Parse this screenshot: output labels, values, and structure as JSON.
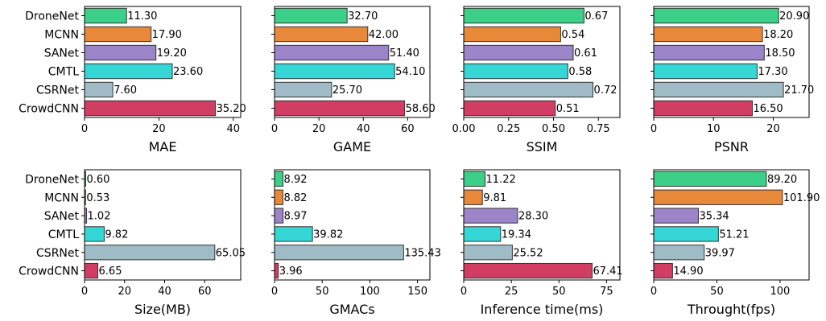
{
  "categories": [
    "DroneNet",
    "MCNN",
    "SANet",
    "CMTL",
    "CSRNet",
    "CrowdCNN"
  ],
  "colors": [
    "#3ccf87",
    "#e8893a",
    "#9b84c8",
    "#35d6d6",
    "#9fbcc6",
    "#d23d64"
  ],
  "chart_data": [
    {
      "type": "bar",
      "orientation": "horizontal",
      "xlabel": "MAE",
      "xlim": [
        0,
        42
      ],
      "xticks": [
        0,
        20,
        40
      ],
      "values": [
        11.3,
        17.9,
        19.2,
        23.6,
        7.6,
        35.2
      ],
      "labels": [
        "11.30",
        "17.90",
        "19.20",
        "23.60",
        "7.60",
        "35.20"
      ]
    },
    {
      "type": "bar",
      "orientation": "horizontal",
      "xlabel": "GAME",
      "xlim": [
        0,
        70
      ],
      "xticks": [
        0,
        20,
        40,
        60
      ],
      "values": [
        32.7,
        42.0,
        51.4,
        54.1,
        25.7,
        58.6
      ],
      "labels": [
        "32.70",
        "42.00",
        "51.40",
        "54.10",
        "25.70",
        "58.60"
      ]
    },
    {
      "type": "bar",
      "orientation": "horizontal",
      "xlabel": "SSIM",
      "xlim": [
        0,
        0.87
      ],
      "xticks": [
        0,
        0.25,
        0.5,
        0.75
      ],
      "xticklabels": [
        "0.00",
        "0.25",
        "0.50",
        "0.75"
      ],
      "values": [
        0.67,
        0.54,
        0.61,
        0.58,
        0.72,
        0.51
      ],
      "labels": [
        "0.67",
        "0.54",
        "0.61",
        "0.58",
        "0.72",
        "0.51"
      ]
    },
    {
      "type": "bar",
      "orientation": "horizontal",
      "xlabel": "PSNR",
      "xlim": [
        0,
        26
      ],
      "xticks": [
        0,
        10,
        20
      ],
      "values": [
        20.9,
        18.2,
        18.5,
        17.3,
        21.7,
        16.5
      ],
      "labels": [
        "20.90",
        "18.20",
        "18.50",
        "17.30",
        "21.70",
        "16.50"
      ]
    },
    {
      "type": "bar",
      "orientation": "horizontal",
      "xlabel": "Size(MB)",
      "xlim": [
        0,
        78
      ],
      "xticks": [
        0,
        20,
        40,
        60
      ],
      "values": [
        0.6,
        0.53,
        1.02,
        9.82,
        65.05,
        6.65
      ],
      "labels": [
        "0.60",
        "0.53",
        "1.02",
        "9.82",
        "65.05",
        "6.65"
      ]
    },
    {
      "type": "bar",
      "orientation": "horizontal",
      "xlabel": "GMACs",
      "xlim": [
        0,
        163
      ],
      "xticks": [
        0,
        50,
        100,
        150
      ],
      "values": [
        8.92,
        8.82,
        8.97,
        39.82,
        135.43,
        3.96
      ],
      "labels": [
        "8.92",
        "8.82",
        "8.97",
        "39.82",
        "135.43",
        "3.96"
      ]
    },
    {
      "type": "bar",
      "orientation": "horizontal",
      "xlabel": "Inference time(ms)",
      "xlim": [
        0,
        82
      ],
      "xticks": [
        0,
        25,
        50,
        75
      ],
      "values": [
        11.22,
        9.81,
        28.3,
        19.34,
        25.52,
        67.41
      ],
      "labels": [
        "11.22",
        "9.81",
        "28.30",
        "19.34",
        "25.52",
        "67.41"
      ]
    },
    {
      "type": "bar",
      "orientation": "horizontal",
      "xlabel": "Throught(fps)",
      "xlim": [
        0,
        123
      ],
      "xticks": [
        0,
        50,
        100
      ],
      "values": [
        89.2,
        101.9,
        35.34,
        51.21,
        39.97,
        14.9
      ],
      "labels": [
        "89.20",
        "101.90",
        "35.34",
        "51.21",
        "39.97",
        "14.90"
      ]
    }
  ]
}
